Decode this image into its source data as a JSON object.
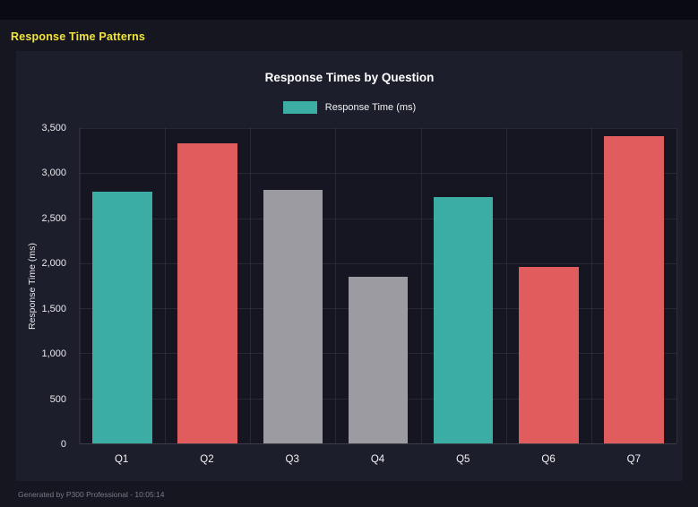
{
  "page": {
    "title": "Response Time Patterns",
    "footer": "Generated by P300 Professional - 10:05:14"
  },
  "colors": {
    "accent_teal": "#3bada5",
    "accent_red": "#e15d5d",
    "accent_gray": "#9b9ba1",
    "title_yellow": "#f2e53a"
  },
  "chart_data": {
    "type": "bar",
    "title": "Response Times by Question",
    "legend": [
      {
        "label": "Response Time (ms)",
        "color": "#3bada5"
      }
    ],
    "legend_position": "top",
    "categories": [
      "Q1",
      "Q2",
      "Q3",
      "Q4",
      "Q5",
      "Q6",
      "Q7"
    ],
    "values": [
      2790,
      3330,
      2810,
      1850,
      2730,
      1960,
      3410
    ],
    "bar_colors": [
      "#3bada5",
      "#e15d5d",
      "#9b9ba1",
      "#9b9ba1",
      "#3bada5",
      "#e15d5d",
      "#e15d5d"
    ],
    "xlabel": "",
    "ylabel": "Response Time (ms)",
    "ylim": [
      0,
      3500
    ],
    "yticks": [
      0,
      500,
      1000,
      1500,
      2000,
      2500,
      3000,
      3500
    ],
    "ytick_labels": [
      "0",
      "500",
      "1,000",
      "1,500",
      "2,000",
      "2,500",
      "3,000",
      "3,500"
    ],
    "grid": true
  }
}
